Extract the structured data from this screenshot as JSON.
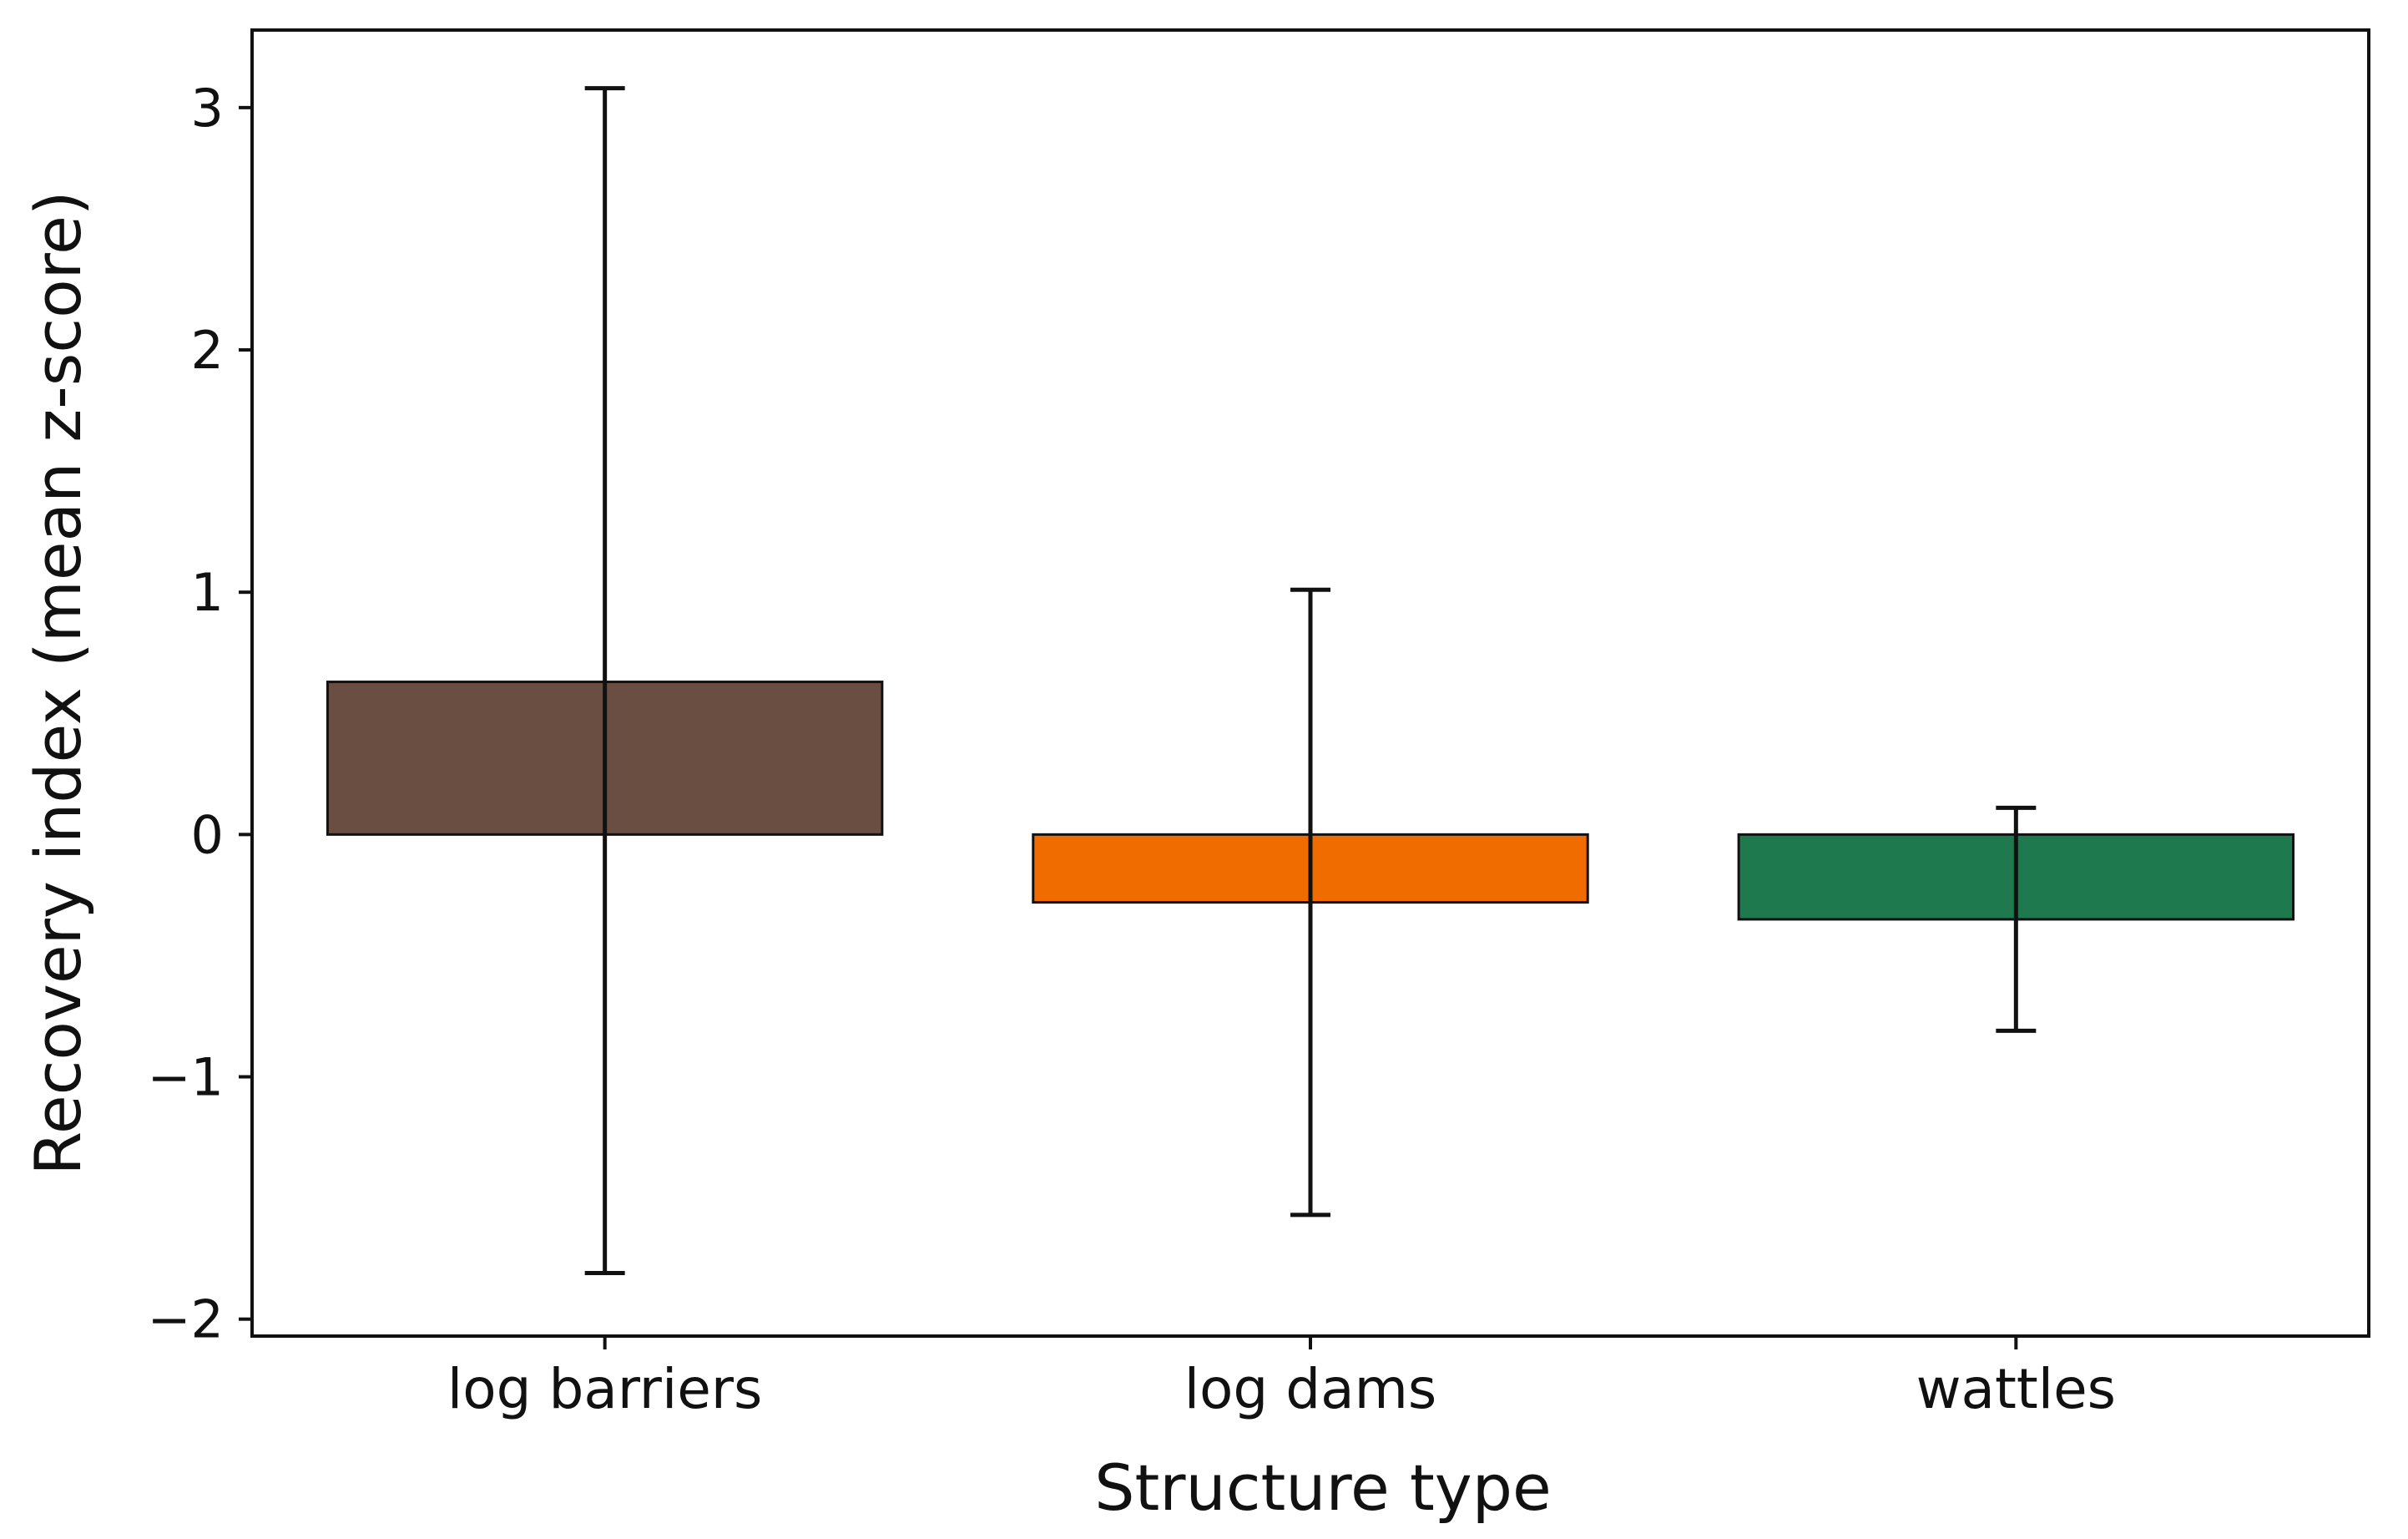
{
  "chart_data": {
    "type": "bar",
    "title": "",
    "xlabel": "Structure type",
    "ylabel": "Recovery index (mean z-score)",
    "categories": [
      "log barriers",
      "log dams",
      "wattles"
    ],
    "values": [
      0.63,
      -0.28,
      -0.35
    ],
    "error_low": [
      -1.81,
      -1.57,
      -0.81
    ],
    "error_high": [
      3.08,
      1.01,
      0.11
    ],
    "colors": [
      "#6b4e42",
      "#f06c00",
      "#1e7a4e"
    ],
    "ylim": [
      -2.07,
      3.32
    ],
    "yticks": [
      -2,
      -1,
      0,
      1,
      2,
      3
    ],
    "ytick_labels": [
      "−2",
      "−1",
      "0",
      "1",
      "2",
      "3"
    ],
    "grid": false,
    "legend": "none"
  }
}
